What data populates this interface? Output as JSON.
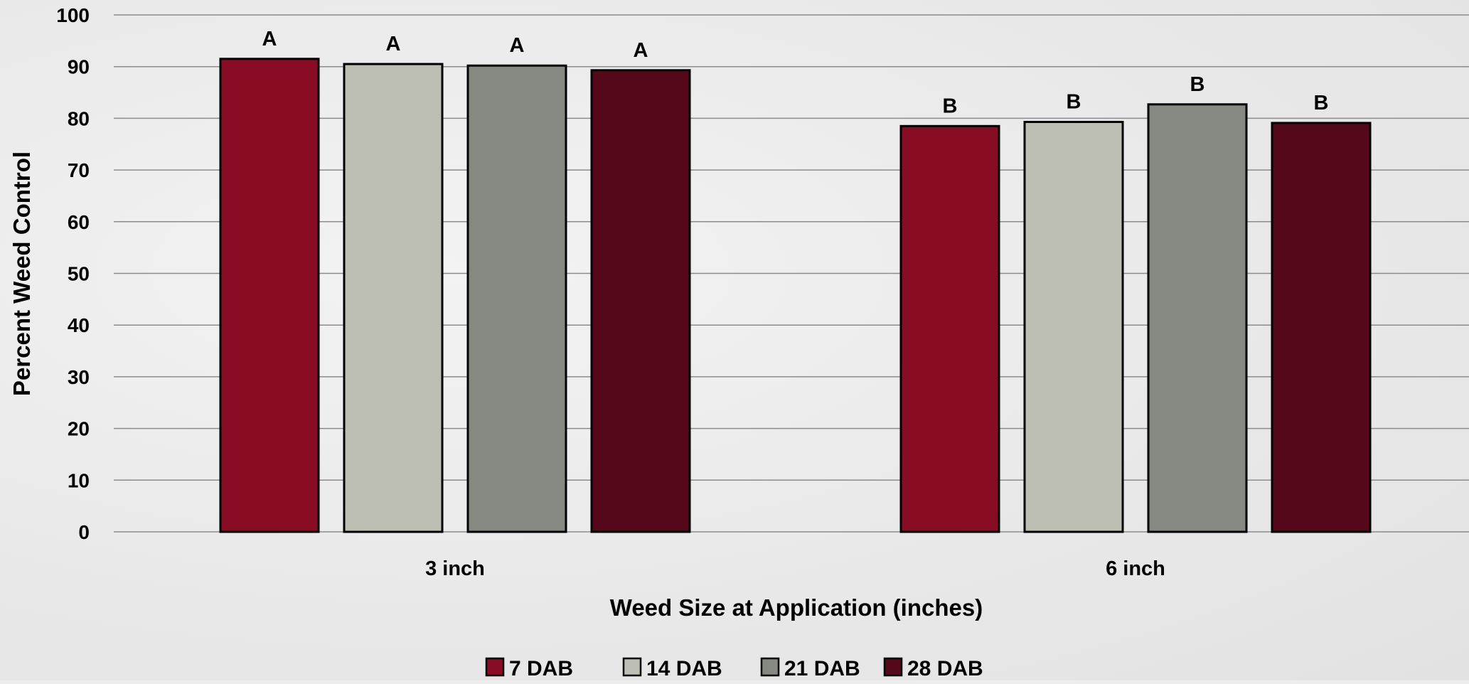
{
  "chart_data": {
    "type": "bar",
    "title": "",
    "xlabel": "Weed Size at Application (inches)",
    "ylabel": "Percent Weed Control",
    "ylim": [
      0,
      100
    ],
    "yticks": [
      "0",
      "10",
      "20",
      "30",
      "40",
      "50",
      "60",
      "70",
      "80",
      "90",
      "100"
    ],
    "grid": true,
    "legend_position": "bottom",
    "categories": [
      "3 inch",
      "6 inch"
    ],
    "series": [
      {
        "name": "7 DAB",
        "color": "#870c24",
        "values": [
          91.5,
          78.5
        ],
        "labels": [
          "A",
          "B"
        ]
      },
      {
        "name": "14 DAB",
        "color": "#bdbfb5",
        "values": [
          90.5,
          79.3
        ],
        "labels": [
          "A",
          "B"
        ]
      },
      {
        "name": "21 DAB",
        "color": "#858981",
        "values": [
          90.2,
          82.7
        ],
        "labels": [
          "A",
          "B"
        ]
      },
      {
        "name": "28 DAB",
        "color": "#540819",
        "values": [
          89.3,
          79.1
        ],
        "labels": [
          "A",
          "B"
        ]
      }
    ]
  }
}
